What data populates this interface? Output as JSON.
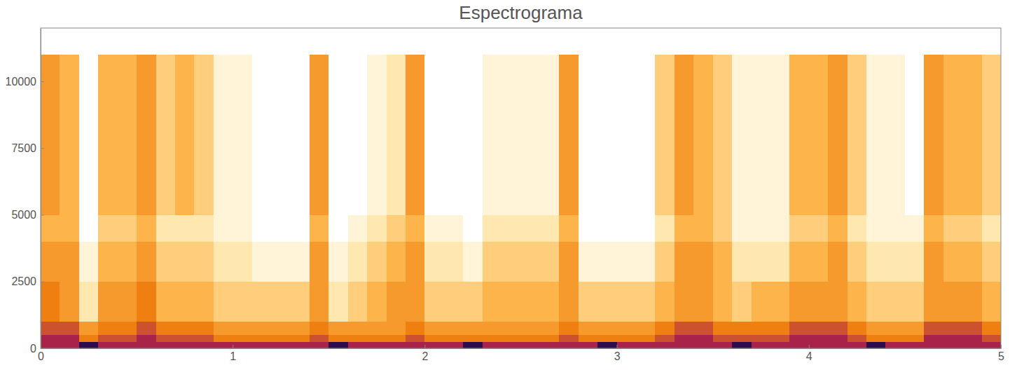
{
  "chart_data": {
    "type": "heatmap",
    "title": "Espectrograma",
    "xlim": [
      0,
      5
    ],
    "ylim": [
      0,
      12000
    ],
    "xticks": [
      0,
      1,
      2,
      3,
      4,
      5
    ],
    "yticks": [
      0,
      2500,
      5000,
      7500,
      10000
    ],
    "x_bins": [
      0,
      0.1,
      0.2,
      0.3,
      0.4,
      0.5,
      0.6,
      0.7,
      0.8,
      0.9,
      1.0,
      1.1,
      1.2,
      1.3,
      1.4,
      1.5,
      1.6,
      1.7,
      1.8,
      1.9,
      2.0,
      2.1,
      2.2,
      2.3,
      2.4,
      2.5,
      2.6,
      2.7,
      2.8,
      2.9,
      3.0,
      3.1,
      3.2,
      3.3,
      3.4,
      3.5,
      3.6,
      3.7,
      3.8,
      3.9,
      4.0,
      4.1,
      4.2,
      4.3,
      4.4,
      4.5,
      4.6,
      4.7,
      4.8,
      4.9,
      5.0
    ],
    "y_bins": [
      0,
      250,
      500,
      750,
      1000,
      1500,
      2000,
      2500,
      3000,
      3500,
      4000,
      5000,
      6000,
      7000,
      8000,
      9000,
      10000,
      11000
    ],
    "values": [
      [
        8,
        8,
        9,
        8,
        8,
        8,
        8,
        8,
        8,
        8,
        8,
        8,
        8,
        8,
        8,
        9,
        8,
        8,
        8,
        8,
        8,
        8,
        9,
        8,
        8,
        8,
        8,
        8,
        8,
        9,
        8,
        8,
        8,
        8,
        8,
        8,
        9,
        8,
        8,
        8,
        8,
        8,
        8,
        9,
        8,
        8,
        8,
        8,
        8,
        8
      ],
      [
        8,
        8,
        6,
        7,
        7,
        8,
        7,
        7,
        7,
        6,
        6,
        6,
        6,
        6,
        7,
        6,
        6,
        6,
        6,
        7,
        6,
        6,
        6,
        6,
        6,
        6,
        6,
        7,
        6,
        6,
        6,
        6,
        7,
        8,
        8,
        7,
        7,
        7,
        7,
        8,
        8,
        8,
        7,
        6,
        6,
        6,
        8,
        8,
        8,
        7
      ],
      [
        7,
        7,
        5,
        6,
        6,
        7,
        6,
        6,
        6,
        5,
        5,
        5,
        5,
        5,
        6,
        5,
        5,
        5,
        5,
        6,
        5,
        5,
        5,
        5,
        5,
        5,
        5,
        6,
        5,
        5,
        5,
        5,
        6,
        7,
        7,
        6,
        6,
        6,
        6,
        7,
        7,
        7,
        6,
        5,
        5,
        5,
        7,
        7,
        7,
        6
      ],
      [
        7,
        7,
        5,
        6,
        6,
        7,
        6,
        6,
        6,
        5,
        5,
        5,
        5,
        5,
        6,
        5,
        5,
        5,
        5,
        6,
        5,
        5,
        5,
        5,
        5,
        5,
        5,
        6,
        5,
        5,
        5,
        5,
        6,
        7,
        7,
        6,
        6,
        6,
        6,
        7,
        7,
        7,
        6,
        5,
        5,
        5,
        7,
        7,
        7,
        6
      ],
      [
        6,
        5,
        2,
        5,
        5,
        6,
        4,
        4,
        4,
        3,
        3,
        3,
        3,
        3,
        5,
        2,
        3,
        4,
        5,
        5,
        3,
        3,
        3,
        4,
        4,
        4,
        4,
        5,
        3,
        3,
        3,
        3,
        4,
        5,
        5,
        4,
        3,
        4,
        4,
        5,
        5,
        5,
        4,
        3,
        3,
        3,
        5,
        5,
        5,
        4
      ],
      [
        6,
        5,
        2,
        5,
        5,
        6,
        4,
        4,
        4,
        3,
        3,
        3,
        3,
        3,
        5,
        2,
        3,
        4,
        5,
        5,
        3,
        3,
        3,
        4,
        4,
        4,
        4,
        5,
        3,
        3,
        3,
        3,
        4,
        5,
        5,
        4,
        3,
        4,
        4,
        5,
        5,
        5,
        4,
        3,
        3,
        3,
        5,
        5,
        5,
        4
      ],
      [
        6,
        5,
        2,
        5,
        5,
        6,
        4,
        4,
        4,
        3,
        3,
        3,
        3,
        3,
        5,
        2,
        3,
        4,
        5,
        5,
        3,
        3,
        3,
        4,
        4,
        4,
        4,
        5,
        3,
        3,
        3,
        3,
        4,
        5,
        5,
        4,
        3,
        4,
        4,
        5,
        5,
        5,
        4,
        3,
        3,
        3,
        5,
        5,
        5,
        4
      ],
      [
        5,
        5,
        1,
        4,
        4,
        5,
        3,
        3,
        3,
        2,
        2,
        1,
        1,
        1,
        5,
        1,
        2,
        3,
        4,
        5,
        2,
        2,
        1,
        3,
        3,
        3,
        3,
        5,
        1,
        1,
        1,
        1,
        3,
        5,
        5,
        4,
        2,
        2,
        2,
        4,
        4,
        5,
        3,
        2,
        2,
        2,
        5,
        4,
        4,
        3
      ],
      [
        5,
        5,
        1,
        4,
        4,
        5,
        3,
        3,
        3,
        2,
        2,
        1,
        1,
        1,
        5,
        1,
        2,
        3,
        4,
        5,
        2,
        2,
        1,
        3,
        3,
        3,
        3,
        5,
        1,
        1,
        1,
        1,
        3,
        5,
        5,
        4,
        2,
        2,
        2,
        4,
        4,
        5,
        3,
        2,
        2,
        2,
        5,
        4,
        4,
        3
      ],
      [
        5,
        5,
        1,
        4,
        4,
        5,
        3,
        3,
        3,
        2,
        2,
        1,
        1,
        1,
        5,
        1,
        2,
        3,
        4,
        5,
        2,
        2,
        1,
        3,
        3,
        3,
        3,
        5,
        1,
        1,
        1,
        1,
        3,
        5,
        5,
        4,
        2,
        2,
        2,
        4,
        4,
        5,
        3,
        2,
        2,
        2,
        5,
        4,
        4,
        3
      ],
      [
        4,
        4,
        0,
        3,
        3,
        4,
        2,
        2,
        2,
        1,
        1,
        0,
        0,
        0,
        4,
        0,
        1,
        2,
        3,
        4,
        1,
        1,
        0,
        2,
        2,
        2,
        2,
        4,
        0,
        0,
        0,
        0,
        2,
        4,
        4,
        3,
        1,
        1,
        1,
        3,
        3,
        4,
        2,
        1,
        1,
        1,
        4,
        3,
        3,
        2
      ],
      [
        5,
        4,
        0,
        4,
        4,
        5,
        3,
        4,
        3,
        1,
        1,
        0,
        0,
        0,
        5,
        0,
        0,
        1,
        2,
        5,
        0,
        0,
        0,
        1,
        1,
        1,
        1,
        5,
        0,
        0,
        0,
        0,
        3,
        5,
        4,
        3,
        1,
        1,
        1,
        4,
        4,
        5,
        3,
        1,
        1,
        0,
        5,
        4,
        4,
        3
      ],
      [
        5,
        4,
        0,
        4,
        4,
        5,
        3,
        4,
        3,
        1,
        1,
        0,
        0,
        0,
        5,
        0,
        0,
        1,
        2,
        5,
        0,
        0,
        0,
        1,
        1,
        1,
        1,
        5,
        0,
        0,
        0,
        0,
        3,
        5,
        4,
        3,
        1,
        1,
        1,
        4,
        4,
        5,
        3,
        1,
        1,
        0,
        5,
        4,
        4,
        3
      ],
      [
        5,
        4,
        0,
        4,
        4,
        5,
        3,
        4,
        3,
        1,
        1,
        0,
        0,
        0,
        5,
        0,
        0,
        1,
        2,
        5,
        0,
        0,
        0,
        1,
        1,
        1,
        1,
        5,
        0,
        0,
        0,
        0,
        3,
        5,
        4,
        3,
        1,
        1,
        1,
        4,
        4,
        5,
        3,
        1,
        1,
        0,
        5,
        4,
        4,
        3
      ],
      [
        5,
        4,
        0,
        4,
        4,
        5,
        3,
        4,
        3,
        1,
        1,
        0,
        0,
        0,
        5,
        0,
        0,
        1,
        2,
        5,
        0,
        0,
        0,
        1,
        1,
        1,
        1,
        5,
        0,
        0,
        0,
        0,
        3,
        5,
        4,
        3,
        1,
        1,
        1,
        4,
        4,
        5,
        3,
        1,
        1,
        0,
        5,
        4,
        4,
        3
      ],
      [
        5,
        4,
        0,
        4,
        4,
        5,
        3,
        4,
        3,
        1,
        1,
        0,
        0,
        0,
        5,
        0,
        0,
        1,
        2,
        5,
        0,
        0,
        0,
        1,
        1,
        1,
        1,
        5,
        0,
        0,
        0,
        0,
        3,
        5,
        4,
        3,
        1,
        1,
        1,
        4,
        4,
        5,
        3,
        1,
        1,
        0,
        5,
        4,
        4,
        3
      ],
      [
        5,
        4,
        0,
        4,
        4,
        5,
        3,
        4,
        3,
        1,
        1,
        0,
        0,
        0,
        5,
        0,
        0,
        1,
        2,
        5,
        0,
        0,
        0,
        1,
        1,
        1,
        1,
        5,
        0,
        0,
        0,
        0,
        3,
        5,
        4,
        3,
        1,
        1,
        1,
        4,
        4,
        5,
        3,
        1,
        1,
        0,
        5,
        4,
        4,
        3
      ]
    ]
  }
}
